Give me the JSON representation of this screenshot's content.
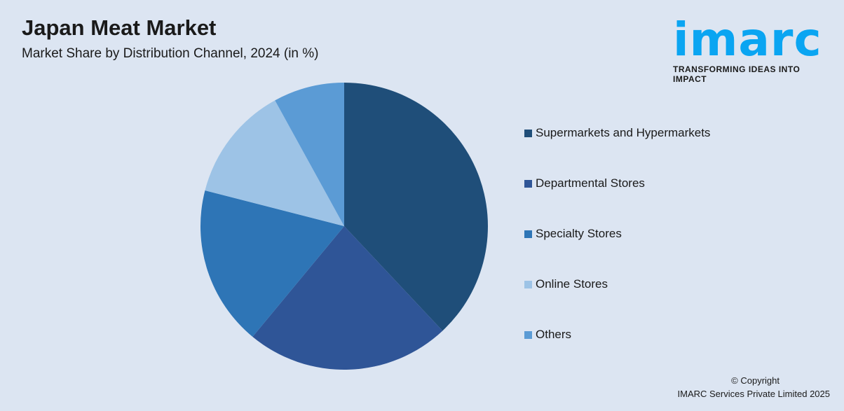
{
  "header": {
    "title": "Japan Meat Market",
    "subtitle": "Market Share by Distribution Channel, 2024 (in %)"
  },
  "logo": {
    "word": "imarc",
    "tagline": "TRANSFORMING IDEAS INTO IMPACT",
    "color": "#0aa5f2"
  },
  "chart_data": {
    "type": "pie",
    "title": "Japan Meat Market",
    "subtitle": "Market Share by Distribution Channel, 2024 (in %)",
    "legend_position": "right",
    "categories": [
      "Supermarkets and Hypermarkets",
      "Departmental Stores",
      "Specialty Stores",
      "Online Stores",
      "Others"
    ],
    "values": [
      38,
      23,
      18,
      13,
      8
    ],
    "colors": [
      "#1f4e79",
      "#2f5597",
      "#2e75b6",
      "#9dc3e6",
      "#5b9bd5"
    ]
  },
  "footer": {
    "copyright": "© Copyright",
    "company": "IMARC Services Private Limited 2025"
  }
}
